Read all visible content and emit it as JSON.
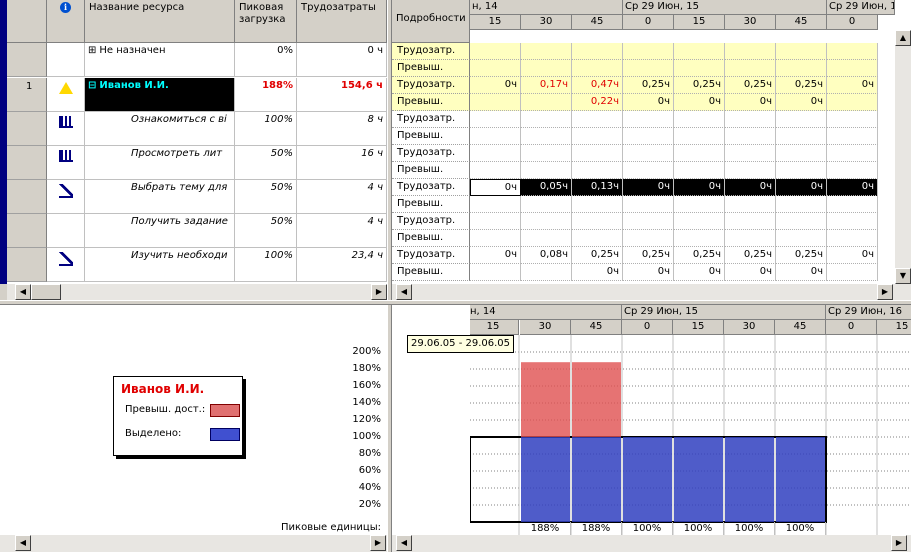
{
  "colors": {
    "over": "#e05050",
    "normal": "#3040c0",
    "selected_row": "#000000",
    "highlight_row": "#ffffc0",
    "blue_bar": "#000080"
  },
  "left_table": {
    "headers": {
      "info_icon": "info-icon",
      "name": "Название ресурса",
      "peak": "Пиковая загрузка",
      "work": "Трудозатраты"
    },
    "rows": [
      {
        "num": "",
        "icon": "",
        "name": "Не назначен",
        "expander": "⊞",
        "peak": "0%",
        "work": "0 ч",
        "type": "group"
      },
      {
        "num": "1",
        "icon": "warning-icon",
        "name": "Иванов И.И.",
        "expander": "⊟",
        "peak": "188%",
        "work": "154,6 ч",
        "type": "resource"
      },
      {
        "num": "",
        "icon": "chart-icon",
        "name": "Ознакомиться с ві",
        "peak": "100%",
        "work": "8 ч",
        "type": "task"
      },
      {
        "num": "",
        "icon": "chart-icon",
        "name": "Просмотреть лит",
        "peak": "50%",
        "work": "16 ч",
        "type": "task"
      },
      {
        "num": "",
        "icon": "edit-icon",
        "name": "Выбрать тему для",
        "peak": "50%",
        "work": "4 ч",
        "type": "task"
      },
      {
        "num": "",
        "icon": "",
        "name": "Получить задание",
        "peak": "50%",
        "work": "4 ч",
        "type": "task"
      },
      {
        "num": "",
        "icon": "edit-icon",
        "name": "Изучить необходи",
        "peak": "100%",
        "work": "23,4 ч",
        "type": "task"
      }
    ]
  },
  "usage_grid": {
    "details_header": "Подробности",
    "top_dates": [
      "н, 14",
      "Ср 29 Июн, 15",
      "Ср 29 Июн, 1"
    ],
    "minutes": [
      "15",
      "30",
      "45",
      "0",
      "15",
      "30",
      "45",
      "0"
    ],
    "rows": [
      {
        "label": "Трудозатр.",
        "cells": [
          "",
          "",
          "",
          "",
          "",
          "",
          "",
          ""
        ]
      },
      {
        "label": "Превыш.",
        "cells": [
          "",
          "",
          "",
          "",
          "",
          "",
          "",
          ""
        ]
      },
      {
        "label": "Трудозатр.",
        "cells": [
          "0ч",
          "0,17ч",
          "0,47ч",
          "0,25ч",
          "0,25ч",
          "0,25ч",
          "0,25ч",
          "0ч"
        ]
      },
      {
        "label": "Превыш.",
        "cells": [
          "",
          "",
          "0,22ч",
          "0ч",
          "0ч",
          "0ч",
          "0ч",
          ""
        ]
      },
      {
        "label": "Трудозатр.",
        "cells": [
          "",
          "",
          "",
          "",
          "",
          "",
          "",
          ""
        ]
      },
      {
        "label": "Превыш.",
        "cells": [
          "",
          "",
          "",
          "",
          "",
          "",
          "",
          ""
        ]
      },
      {
        "label": "Трудозатр.",
        "cells": [
          "",
          "",
          "",
          "",
          "",
          "",
          "",
          ""
        ]
      },
      {
        "label": "Превыш.",
        "cells": [
          "",
          "",
          "",
          "",
          "",
          "",
          "",
          ""
        ]
      },
      {
        "label": "Трудозатр.",
        "cells": [
          "0ч",
          "0,05ч",
          "0,13ч",
          "0ч",
          "0ч",
          "0ч",
          "0ч",
          "0ч"
        ]
      },
      {
        "label": "Превыш.",
        "cells": [
          "",
          "",
          "",
          "",
          "",
          "",
          "",
          ""
        ]
      },
      {
        "label": "Трудозатр.",
        "cells": [
          "",
          "",
          "",
          "",
          "",
          "",
          "",
          ""
        ]
      },
      {
        "label": "Превыш.",
        "cells": [
          "",
          "",
          "",
          "",
          "",
          "",
          "",
          ""
        ]
      },
      {
        "label": "Трудозатр.",
        "cells": [
          "0ч",
          "0,08ч",
          "0,25ч",
          "0,25ч",
          "0,25ч",
          "0,25ч",
          "0,25ч",
          "0ч"
        ]
      },
      {
        "label": "Превыш.",
        "cells": [
          "",
          "",
          "0ч",
          "0ч",
          "0ч",
          "0ч",
          "0ч",
          ""
        ]
      }
    ]
  },
  "graph": {
    "legend": {
      "title": "Иванов И.И.",
      "over_label": "Превыш. дост.:",
      "selected_label": "Выделено:"
    },
    "y_ticks": [
      "200%",
      "180%",
      "160%",
      "140%",
      "120%",
      "100%",
      "80%",
      "60%",
      "40%",
      "20%"
    ],
    "peak_label": "Пиковые единицы:",
    "top_dates": [
      "н, 14",
      "Ср 29 Июн, 15",
      "Ср 29 Июн, 16"
    ],
    "minutes": [
      "15",
      "30",
      "45",
      "0",
      "15",
      "30",
      "45",
      "0",
      "15"
    ],
    "tooltip": "29.06.05 - 29.06.05",
    "bars": [
      0,
      188,
      188,
      100,
      100,
      100,
      100,
      0,
      0
    ],
    "peak_values": [
      "",
      "188%",
      "188%",
      "100%",
      "100%",
      "100%",
      "100%",
      "",
      ""
    ]
  }
}
